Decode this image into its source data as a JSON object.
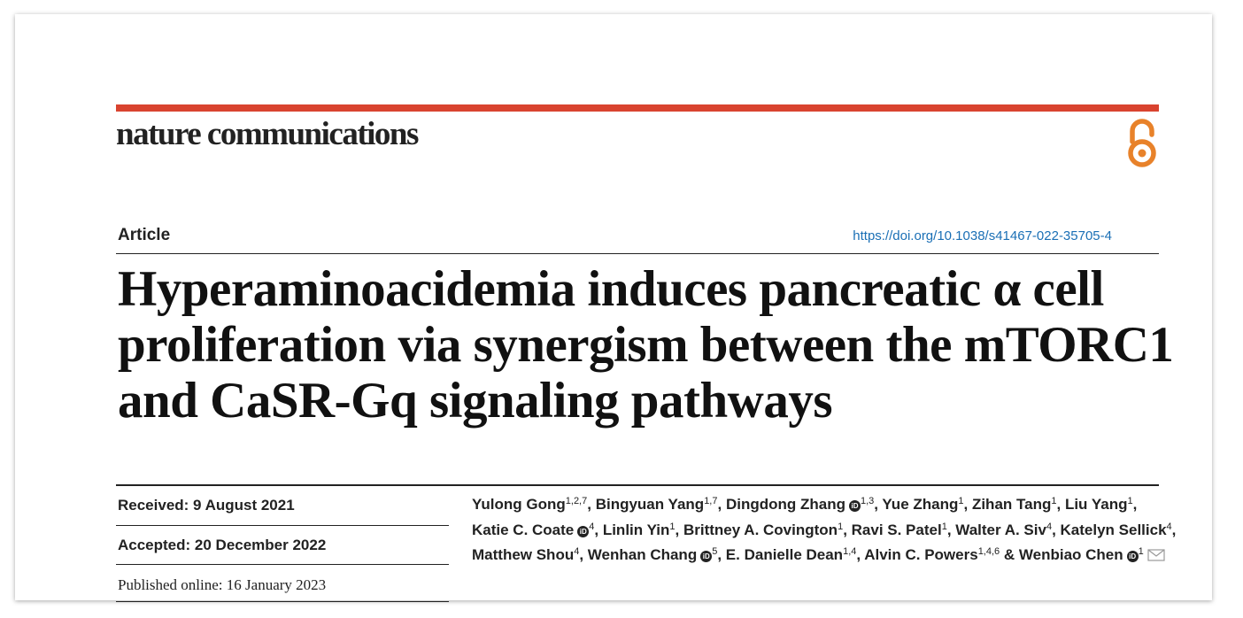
{
  "journal": {
    "name": "nature communications"
  },
  "open_access_icon": "open-access-icon",
  "article": {
    "type": "Article",
    "doi": "https://doi.org/10.1038/s41467-022-35705-4",
    "title": "Hyperaminoacidemia induces pancreatic α cell proliferation via synergism between the mTORC1 and CaSR-Gq signaling pathways"
  },
  "dates": {
    "received": "Received: 9 August 2021",
    "accepted": "Accepted: 20 December 2022",
    "published": "Published online: 16 January 2023"
  },
  "authors": [
    {
      "name": "Yulong Gong",
      "aff": "1,2,7",
      "orcid": false,
      "sep": ","
    },
    {
      "name": "Bingyuan Yang",
      "aff": "1,7",
      "orcid": false,
      "sep": ","
    },
    {
      "name": "Dingdong Zhang",
      "aff": "1,3",
      "orcid": true,
      "sep": ","
    },
    {
      "name": "Yue Zhang",
      "aff": "1",
      "orcid": false,
      "sep": ","
    },
    {
      "name": "Zihan Tang",
      "aff": "1",
      "orcid": false,
      "sep": ","
    },
    {
      "name": "Liu Yang",
      "aff": "1",
      "orcid": false,
      "sep": ","
    },
    {
      "name": "Katie C. Coate",
      "aff": "4",
      "orcid": true,
      "sep": ","
    },
    {
      "name": "Linlin Yin",
      "aff": "1",
      "orcid": false,
      "sep": ","
    },
    {
      "name": "Brittney A. Covington",
      "aff": "1",
      "orcid": false,
      "sep": ","
    },
    {
      "name": "Ravi S. Patel",
      "aff": "1",
      "orcid": false,
      "sep": ","
    },
    {
      "name": "Walter A. Siv",
      "aff": "4",
      "orcid": false,
      "sep": ","
    },
    {
      "name": "Katelyn Sellick",
      "aff": "4",
      "orcid": false,
      "sep": ","
    },
    {
      "name": "Matthew Shou",
      "aff": "4",
      "orcid": false,
      "sep": ","
    },
    {
      "name": "Wenhan Chang",
      "aff": "5",
      "orcid": true,
      "sep": ","
    },
    {
      "name": "E. Danielle Dean",
      "aff": "1,4",
      "orcid": false,
      "sep": ","
    },
    {
      "name": "Alvin C. Powers",
      "aff": "1,4,6",
      "orcid": false,
      "sep": " &"
    },
    {
      "name": "Wenbiao Chen",
      "aff": "1",
      "orcid": true,
      "sep": "",
      "corresponding": true
    }
  ],
  "colors": {
    "accent_bar": "#d9432f",
    "open_access": "#e8822a",
    "doi_link": "#1a6fb5"
  }
}
